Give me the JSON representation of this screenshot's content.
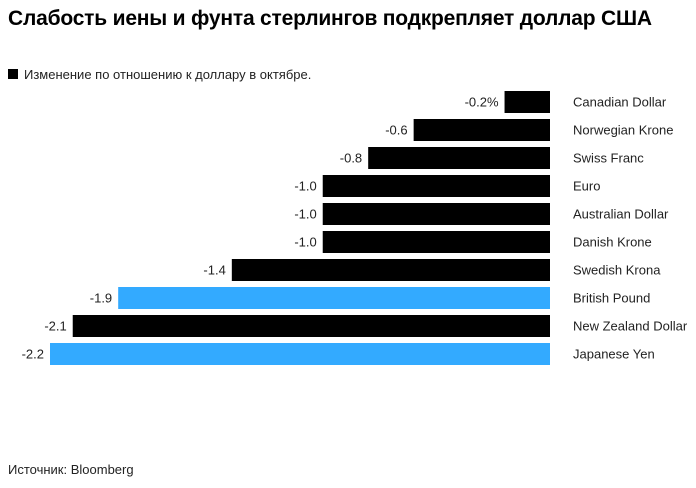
{
  "title": "Слабость иены и фунта стерлингов подкрепляет доллар США",
  "legend": {
    "label": "Изменение по отношению к доллару в октябре."
  },
  "source": "Источник: Bloomberg",
  "colors": {
    "default": "#000000",
    "highlight": "#33aaff"
  },
  "chart_data": {
    "type": "bar",
    "orientation": "horizontal",
    "title": "Слабость иены и фунта стерлингов подкрепляет доллар США",
    "series_name": "Изменение по отношению к доллару в октябре.",
    "unit": "%",
    "xlim": [
      -2.2,
      0
    ],
    "categories": [
      "Canadian Dollar",
      "Norwegian Krone",
      "Swiss Franc",
      "Euro",
      "Australian Dollar",
      "Danish Krone",
      "Swedish Krona",
      "British Pound",
      "New Zealand Dollar",
      "Japanese Yen"
    ],
    "values": [
      -0.2,
      -0.6,
      -0.8,
      -1.0,
      -1.0,
      -1.0,
      -1.4,
      -1.9,
      -2.1,
      -2.2
    ],
    "value_labels": [
      "-0.2%",
      "-0.6",
      "-0.8",
      "-1.0",
      "-1.0",
      "-1.0",
      "-1.4",
      "-1.9",
      "-2.1",
      "-2.2"
    ],
    "highlighted": [
      false,
      false,
      false,
      false,
      false,
      false,
      false,
      true,
      false,
      true
    ]
  }
}
